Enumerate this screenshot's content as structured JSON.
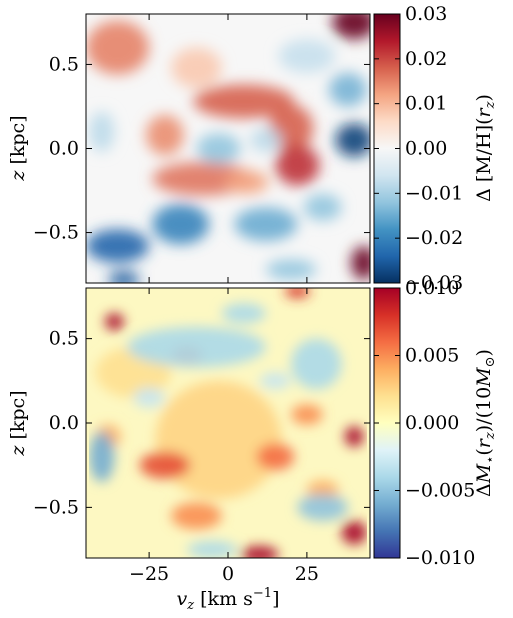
{
  "chart_data": [
    {
      "type": "heatmap",
      "panel": "top",
      "xlabel": "",
      "ylabel": "z [kpc]",
      "xlim": [
        -45,
        45
      ],
      "ylim": [
        -0.8,
        0.8
      ],
      "xticks": [
        -25,
        0,
        25
      ],
      "yticks": [
        {
          "value": 0.5,
          "label": "0.5"
        },
        {
          "value": 0.0,
          "label": "0.0"
        },
        {
          "value": -0.5,
          "label": "−0.5"
        }
      ],
      "colorbar": {
        "label": "Δ [M/H](r_z)",
        "colormap": "RdBu_r",
        "range": [
          -0.03,
          0.03
        ],
        "ticks": [
          {
            "value": 0.03,
            "label": "0.03"
          },
          {
            "value": 0.02,
            "label": "0.02"
          },
          {
            "value": 0.01,
            "label": "0.01"
          },
          {
            "value": 0.0,
            "label": "0.00"
          },
          {
            "value": -0.01,
            "label": "−0.01"
          },
          {
            "value": -0.02,
            "label": "−0.02"
          },
          {
            "value": -0.03,
            "label": "−0.03"
          }
        ]
      },
      "features": [
        {
          "x": 5,
          "y": 0.28,
          "sx": 16,
          "sy": 0.1,
          "value": 0.018
        },
        {
          "x": 20,
          "y": 0.12,
          "sx": 7,
          "sy": 0.14,
          "value": 0.018
        },
        {
          "x": 22,
          "y": -0.1,
          "sx": 7,
          "sy": 0.12,
          "value": 0.022
        },
        {
          "x": -8,
          "y": -0.18,
          "sx": 16,
          "sy": 0.1,
          "value": 0.016
        },
        {
          "x": -20,
          "y": 0.08,
          "sx": 6,
          "sy": 0.12,
          "value": 0.014
        },
        {
          "x": 6,
          "y": -0.2,
          "sx": 7,
          "sy": 0.07,
          "value": 0.012
        },
        {
          "x": -3,
          "y": 0.0,
          "sx": 7,
          "sy": 0.09,
          "value": -0.012
        },
        {
          "x": 12,
          "y": 0.05,
          "sx": 5,
          "sy": 0.07,
          "value": -0.008
        },
        {
          "x": -35,
          "y": 0.6,
          "sx": 10,
          "sy": 0.16,
          "value": 0.015
        },
        {
          "x": -10,
          "y": 0.48,
          "sx": 8,
          "sy": 0.12,
          "value": 0.008
        },
        {
          "x": 40,
          "y": 0.75,
          "sx": 7,
          "sy": 0.1,
          "value": 0.035
        },
        {
          "x": 43,
          "y": -0.68,
          "sx": 4,
          "sy": 0.1,
          "value": 0.03
        },
        {
          "x": 40,
          "y": 0.05,
          "sx": 6,
          "sy": 0.1,
          "value": -0.028
        },
        {
          "x": 38,
          "y": 0.35,
          "sx": 6,
          "sy": 0.1,
          "value": -0.014
        },
        {
          "x": -35,
          "y": -0.58,
          "sx": 10,
          "sy": 0.1,
          "value": -0.024
        },
        {
          "x": -15,
          "y": -0.45,
          "sx": 9,
          "sy": 0.12,
          "value": -0.02
        },
        {
          "x": 12,
          "y": -0.45,
          "sx": 10,
          "sy": 0.1,
          "value": -0.015
        },
        {
          "x": -33,
          "y": -0.78,
          "sx": 5,
          "sy": 0.05,
          "value": -0.025
        },
        {
          "x": 20,
          "y": -0.72,
          "sx": 8,
          "sy": 0.06,
          "value": -0.012
        },
        {
          "x": 30,
          "y": -0.35,
          "sx": 6,
          "sy": 0.08,
          "value": -0.012
        },
        {
          "x": -40,
          "y": 0.1,
          "sx": 4,
          "sy": 0.12,
          "value": -0.008
        },
        {
          "x": 25,
          "y": 0.55,
          "sx": 9,
          "sy": 0.1,
          "value": -0.007
        }
      ]
    },
    {
      "type": "heatmap",
      "panel": "bottom",
      "xlabel": "v_z [km s^-1]",
      "ylabel": "z [kpc]",
      "xlim": [
        -45,
        45
      ],
      "ylim": [
        -0.8,
        0.8
      ],
      "xticks": [
        {
          "value": -25,
          "label": "−25"
        },
        {
          "value": 0,
          "label": "0"
        },
        {
          "value": 25,
          "label": "25"
        }
      ],
      "yticks": [
        {
          "value": 0.5,
          "label": "0.5"
        },
        {
          "value": 0.0,
          "label": "0.0"
        },
        {
          "value": -0.5,
          "label": "−0.5"
        }
      ],
      "colorbar": {
        "label": "ΔM⋆(r_z)/(10M⊙)",
        "colormap": "RdYlBu_r",
        "range": [
          -0.01,
          0.01
        ],
        "ticks": [
          {
            "value": 0.01,
            "label": "0.010"
          },
          {
            "value": 0.005,
            "label": "0.005"
          },
          {
            "value": 0.0,
            "label": "0.000"
          },
          {
            "value": -0.005,
            "label": "−0.005"
          },
          {
            "value": -0.01,
            "label": "−0.010"
          }
        ]
      },
      "features": [
        {
          "x": -3,
          "y": -0.1,
          "sx": 20,
          "sy": 0.35,
          "value": 0.0025
        },
        {
          "x": -30,
          "y": 0.3,
          "sx": 12,
          "sy": 0.15,
          "value": 0.002
        },
        {
          "x": -36,
          "y": 0.6,
          "sx": 3,
          "sy": 0.05,
          "value": 0.012
        },
        {
          "x": 10,
          "y": -0.78,
          "sx": 6,
          "sy": 0.05,
          "value": 0.016
        },
        {
          "x": 40,
          "y": -0.65,
          "sx": 4,
          "sy": 0.07,
          "value": 0.012
        },
        {
          "x": 40,
          "y": -0.08,
          "sx": 3,
          "sy": 0.06,
          "value": 0.01
        },
        {
          "x": -20,
          "y": -0.25,
          "sx": 8,
          "sy": 0.08,
          "value": 0.007
        },
        {
          "x": 15,
          "y": -0.2,
          "sx": 6,
          "sy": 0.08,
          "value": 0.006
        },
        {
          "x": -10,
          "y": -0.55,
          "sx": 8,
          "sy": 0.08,
          "value": 0.005
        },
        {
          "x": 25,
          "y": 0.05,
          "sx": 5,
          "sy": 0.06,
          "value": 0.005
        },
        {
          "x": 22,
          "y": 0.78,
          "sx": 4,
          "sy": 0.04,
          "value": 0.008
        },
        {
          "x": -13,
          "y": 0.4,
          "sx": 5,
          "sy": 0.06,
          "value": 0.006
        },
        {
          "x": 30,
          "y": -0.4,
          "sx": 5,
          "sy": 0.06,
          "value": 0.004
        },
        {
          "x": -38,
          "y": -0.08,
          "sx": 4,
          "sy": 0.07,
          "value": 0.004
        },
        {
          "x": -10,
          "y": 0.45,
          "sx": 22,
          "sy": 0.12,
          "value": -0.004
        },
        {
          "x": 28,
          "y": 0.35,
          "sx": 8,
          "sy": 0.15,
          "value": -0.004
        },
        {
          "x": -40,
          "y": -0.2,
          "sx": 4,
          "sy": 0.15,
          "value": -0.006
        },
        {
          "x": 30,
          "y": -0.5,
          "sx": 8,
          "sy": 0.08,
          "value": -0.005
        },
        {
          "x": 5,
          "y": 0.65,
          "sx": 7,
          "sy": 0.06,
          "value": -0.004
        },
        {
          "x": -25,
          "y": 0.15,
          "sx": 5,
          "sy": 0.06,
          "value": -0.003
        },
        {
          "x": -5,
          "y": -0.75,
          "sx": 8,
          "sy": 0.05,
          "value": -0.004
        },
        {
          "x": 15,
          "y": 0.25,
          "sx": 5,
          "sy": 0.05,
          "value": -0.003
        }
      ]
    }
  ]
}
